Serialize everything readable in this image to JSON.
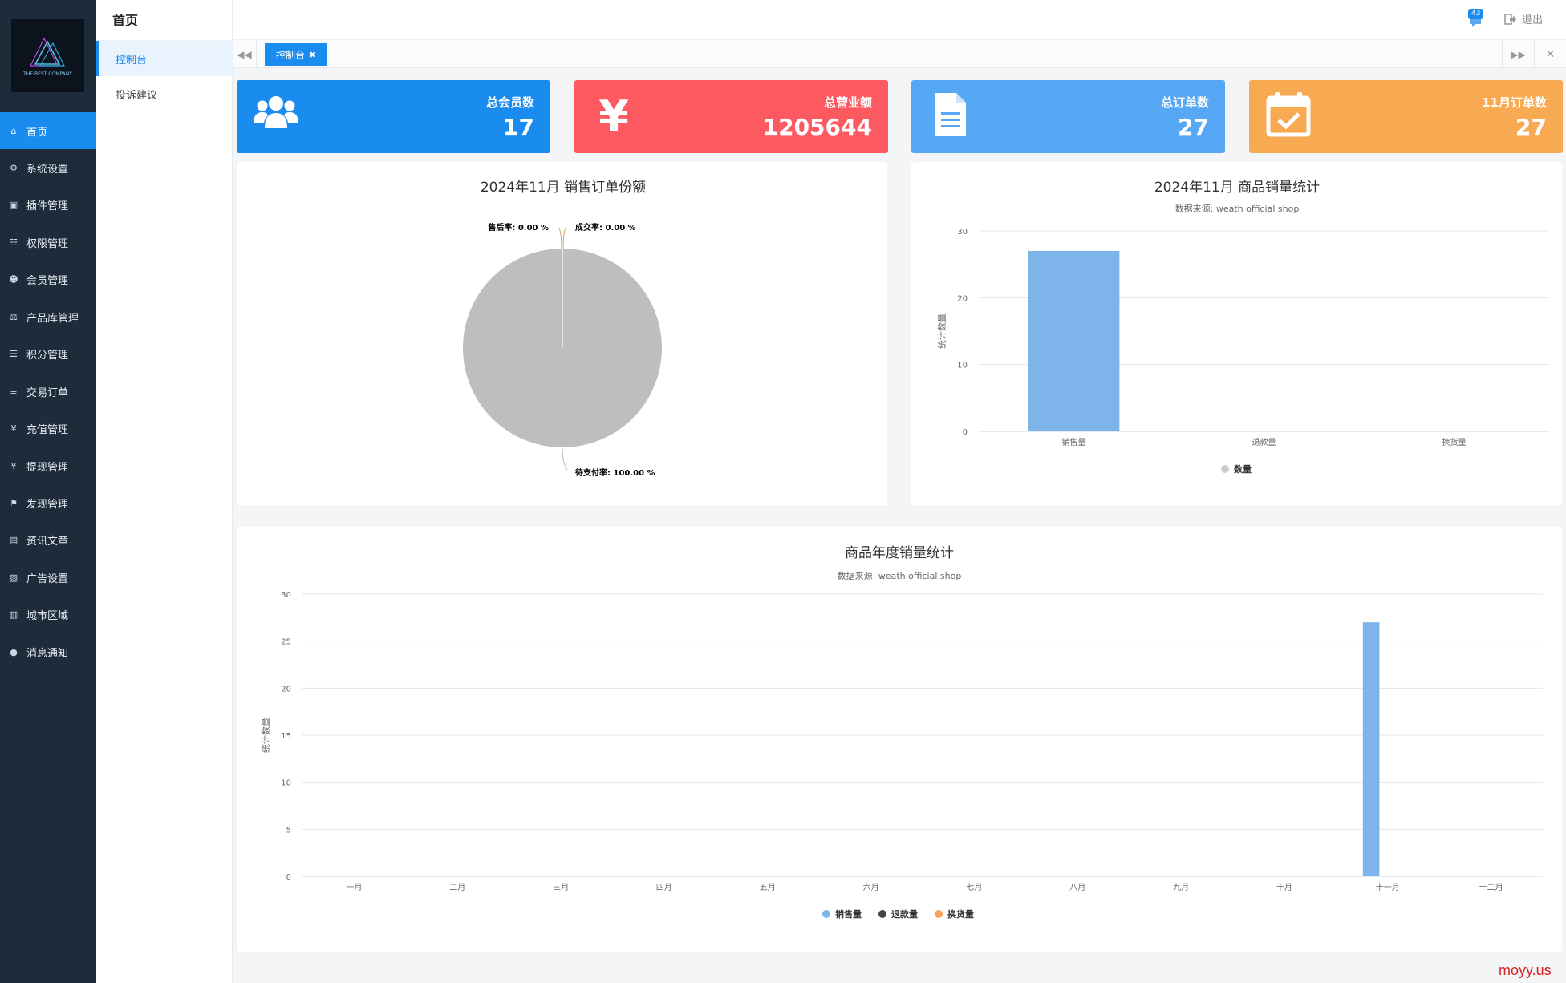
{
  "sidebar": {
    "logo_text": "THE BEST COMPANY",
    "items": [
      {
        "label": "首页",
        "icon": "home-icon"
      },
      {
        "label": "系统设置",
        "icon": "gear-icon"
      },
      {
        "label": "插件管理",
        "icon": "plugin-icon"
      },
      {
        "label": "权限管理",
        "icon": "sitemap-icon"
      },
      {
        "label": "会员管理",
        "icon": "users-icon"
      },
      {
        "label": "产品库管理",
        "icon": "scale-icon"
      },
      {
        "label": "积分管理",
        "icon": "file-icon"
      },
      {
        "label": "交易订单",
        "icon": "signpost-icon"
      },
      {
        "label": "充值管理",
        "icon": "yen-icon"
      },
      {
        "label": "提现管理",
        "icon": "yen-icon"
      },
      {
        "label": "发现管理",
        "icon": "flag-icon"
      },
      {
        "label": "资讯文章",
        "icon": "newspaper-icon"
      },
      {
        "label": "广告设置",
        "icon": "image-icon"
      },
      {
        "label": "城市区域",
        "icon": "map-icon"
      },
      {
        "label": "消息通知",
        "icon": "comment-icon"
      }
    ]
  },
  "subnav": {
    "title": "首页",
    "items": [
      {
        "label": "控制台"
      },
      {
        "label": "投诉建议"
      }
    ]
  },
  "header": {
    "notification_count": "43",
    "logout_label": "退出"
  },
  "tabs": {
    "active_label": "控制台",
    "close_glyph": "✖"
  },
  "stats": [
    {
      "label": "总会员数",
      "value": "17",
      "color": "#1a8cf0",
      "icon": "users-icon"
    },
    {
      "label": "总营业额",
      "value": "1205644",
      "color": "#fc5960",
      "icon": "yen-icon"
    },
    {
      "label": "总订单数",
      "value": "27",
      "color": "#56a8f4",
      "icon": "document-icon"
    },
    {
      "label": "11月订单数",
      "value": "27",
      "color": "#f8aa53",
      "icon": "calendar-check-icon"
    }
  ],
  "chart_data": [
    {
      "type": "pie",
      "title": "2024年11月 销售订单份额",
      "slices": [
        {
          "name": "售后率",
          "value": 0.0,
          "label": "售后率: 0.00 %"
        },
        {
          "name": "成交率",
          "value": 0.0,
          "label": "成交率: 0.00 %"
        },
        {
          "name": "待支付率",
          "value": 100.0,
          "label": "待支付率: 100.00 %"
        }
      ],
      "colors": [
        "#c8a27a",
        "#c8a27a",
        "#bebebe"
      ]
    },
    {
      "type": "bar",
      "title": "2024年11月 商品销量统计",
      "subtitle": "数据来源: weath official shop",
      "categories": [
        "销售量",
        "退款量",
        "换货量"
      ],
      "series": [
        {
          "name": "数量",
          "values": [
            27,
            0,
            0
          ]
        }
      ],
      "ylabel": "统计数量",
      "ylim": [
        0,
        30
      ],
      "yticks": [
        0,
        10,
        20,
        30
      ],
      "bar_color": "#7db4ea",
      "legend_color": "#cccccc",
      "grid": true,
      "legend_position": "bottom"
    },
    {
      "type": "bar",
      "title": "商品年度销量统计",
      "subtitle": "数据来源: weath official shop",
      "categories": [
        "一月",
        "二月",
        "三月",
        "四月",
        "五月",
        "六月",
        "七月",
        "八月",
        "九月",
        "十月",
        "十一月",
        "十二月"
      ],
      "series": [
        {
          "name": "销售量",
          "values": [
            0,
            0,
            0,
            0,
            0,
            0,
            0,
            0,
            0,
            0,
            27,
            0
          ],
          "color": "#7db4ea"
        },
        {
          "name": "退款量",
          "values": [
            0,
            0,
            0,
            0,
            0,
            0,
            0,
            0,
            0,
            0,
            0,
            0
          ],
          "color": "#434348"
        },
        {
          "name": "换货量",
          "values": [
            0,
            0,
            0,
            0,
            0,
            0,
            0,
            0,
            0,
            0,
            0,
            0
          ],
          "color": "#f7a35c"
        }
      ],
      "ylabel": "统计数量",
      "ylim": [
        0,
        30
      ],
      "yticks": [
        0,
        5,
        10,
        15,
        20,
        25,
        30
      ],
      "grid": true,
      "legend_position": "bottom"
    }
  ],
  "watermark": "moyy.us"
}
